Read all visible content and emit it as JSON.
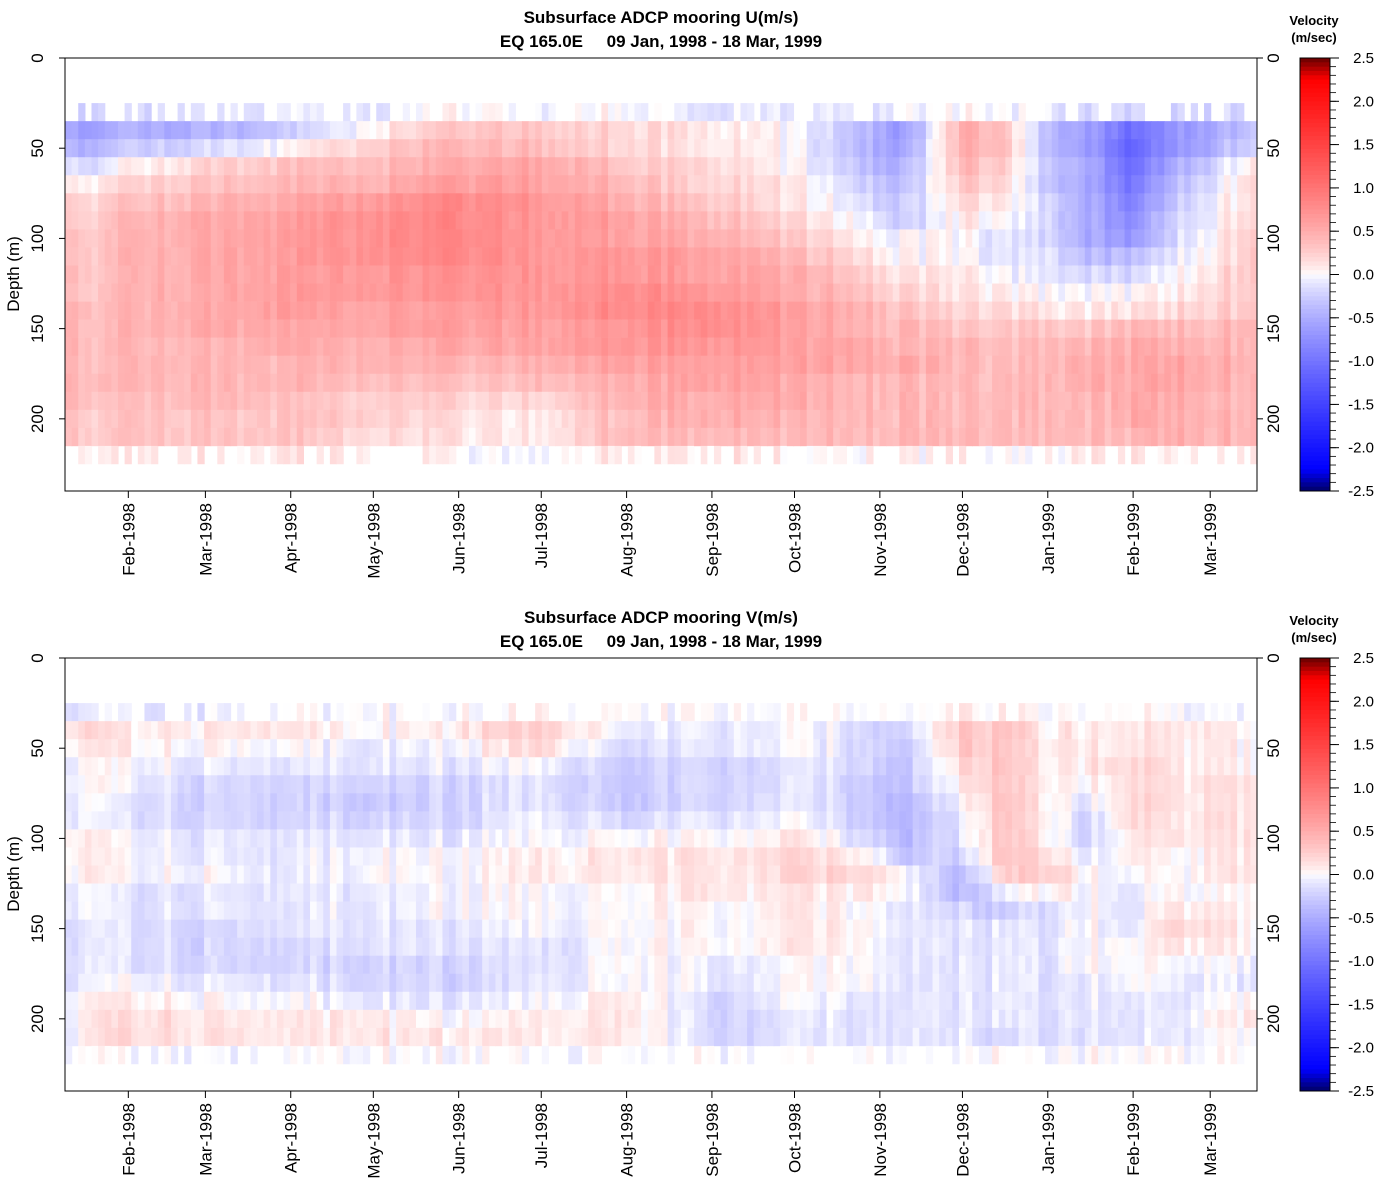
{
  "chart_data": [
    {
      "type": "heatmap",
      "title": "Subsurface ADCP mooring U(m/s)",
      "subtitle": "EQ 165.0E     09 Jan, 1998 - 18 Mar, 1999",
      "xlabel": "",
      "ylabel": "Depth (m)",
      "xlim": [
        "1998-01-09",
        "1999-03-18"
      ],
      "ylim": [
        240,
        0
      ],
      "y_ticks": [
        0,
        50,
        100,
        150,
        200
      ],
      "x_ticks": [
        "Feb-1998",
        "Mar-1998",
        "Apr-1998",
        "May-1998",
        "Jun-1998",
        "Jul-1998",
        "Aug-1998",
        "Sep-1998",
        "Oct-1998",
        "Nov-1998",
        "Dec-1998",
        "Jan-1999",
        "Feb-1999",
        "Mar-1999"
      ],
      "x_tick_dates": [
        "1998-02-01",
        "1998-03-01",
        "1998-04-01",
        "1998-05-01",
        "1998-06-01",
        "1998-07-01",
        "1998-08-01",
        "1998-09-01",
        "1998-10-01",
        "1998-11-01",
        "1998-12-01",
        "1999-01-01",
        "1999-02-01",
        "1999-03-01"
      ],
      "colorbar": {
        "title": [
          "Velocity",
          "(m/sec)"
        ],
        "range": [
          -2.5,
          2.5
        ],
        "ticks": [
          "2.5",
          "2.0",
          "1.5",
          "1.0",
          "0.5",
          "0.0",
          "-0.5",
          "-1.0",
          "-1.5",
          "-2.0",
          "-2.5"
        ],
        "colors": {
          "negative_extreme": "#000066",
          "negative": "#0000ff",
          "zero": "#ffffff",
          "positive": "#ff0000",
          "positive_extreme": "#660000"
        }
      },
      "depths": [
        30,
        40,
        50,
        60,
        70,
        80,
        90,
        100,
        110,
        120,
        130,
        140,
        150,
        160,
        170,
        180,
        190,
        200,
        210,
        220
      ],
      "dates": [
        "1998-01-09",
        "1998-02-01",
        "1998-03-01",
        "1998-04-01",
        "1998-05-01",
        "1998-06-01",
        "1998-07-01",
        "1998-08-01",
        "1998-09-01",
        "1998-10-01",
        "1998-11-01",
        "1998-11-10",
        "1998-12-01",
        "1998-12-15",
        "1999-01-01",
        "1999-01-15",
        "1999-02-01",
        "1999-02-15",
        "1999-03-18"
      ],
      "values": [
        [
          -0.2,
          -0.2,
          -0.2,
          -0.1,
          -0.1,
          0.0,
          0.0,
          0.0,
          -0.1,
          -0.1,
          -0.1,
          -0.1,
          0.0,
          0.0,
          -0.1,
          -0.2,
          -0.2,
          -0.2,
          -0.2
        ],
        [
          -0.6,
          -0.5,
          -0.5,
          -0.3,
          0.1,
          0.3,
          0.3,
          0.2,
          0.1,
          0.0,
          -0.5,
          -0.7,
          0.5,
          0.4,
          -0.4,
          -0.6,
          -1.1,
          -0.7,
          -0.3
        ],
        [
          -0.5,
          -0.3,
          -0.2,
          0.0,
          0.3,
          0.4,
          0.4,
          0.2,
          0.1,
          0.0,
          -0.5,
          -0.6,
          0.5,
          0.4,
          -0.4,
          -0.6,
          -1.2,
          -0.7,
          -0.2
        ],
        [
          -0.2,
          0.0,
          0.2,
          0.3,
          0.4,
          0.5,
          0.6,
          0.3,
          0.2,
          0.0,
          -0.4,
          -0.5,
          0.4,
          0.3,
          -0.3,
          -0.5,
          -1.1,
          -0.5,
          0.1
        ],
        [
          0.0,
          0.2,
          0.3,
          0.4,
          0.5,
          0.6,
          0.6,
          0.4,
          0.2,
          0.1,
          -0.3,
          -0.4,
          0.3,
          0.2,
          -0.3,
          -0.5,
          -1.0,
          -0.4,
          0.2
        ],
        [
          0.2,
          0.3,
          0.4,
          0.5,
          0.7,
          0.8,
          0.7,
          0.5,
          0.3,
          0.1,
          -0.2,
          -0.3,
          0.2,
          0.1,
          -0.2,
          -0.5,
          -0.9,
          -0.3,
          0.2
        ],
        [
          0.2,
          0.4,
          0.5,
          0.6,
          0.8,
          0.8,
          0.7,
          0.6,
          0.4,
          0.2,
          -0.1,
          -0.3,
          0.1,
          0.0,
          -0.2,
          -0.5,
          -0.8,
          -0.2,
          0.2
        ],
        [
          0.3,
          0.4,
          0.5,
          0.6,
          0.8,
          0.8,
          0.7,
          0.6,
          0.5,
          0.3,
          0.0,
          0.0,
          0.0,
          -0.1,
          -0.2,
          -0.5,
          -0.7,
          -0.2,
          0.3
        ],
        [
          0.3,
          0.4,
          0.5,
          0.6,
          0.8,
          0.8,
          0.7,
          0.7,
          0.6,
          0.4,
          0.1,
          0.0,
          0.0,
          -0.1,
          -0.1,
          -0.4,
          -0.4,
          -0.1,
          0.3
        ],
        [
          0.3,
          0.4,
          0.5,
          0.6,
          0.7,
          0.7,
          0.7,
          0.7,
          0.6,
          0.5,
          0.2,
          0.1,
          0.1,
          0.0,
          -0.1,
          -0.2,
          -0.2,
          0.0,
          0.3
        ],
        [
          0.3,
          0.4,
          0.5,
          0.6,
          0.7,
          0.7,
          0.7,
          0.8,
          0.7,
          0.5,
          0.3,
          0.2,
          0.1,
          0.1,
          0.0,
          0.0,
          0.0,
          0.1,
          0.3
        ],
        [
          0.4,
          0.4,
          0.5,
          0.6,
          0.6,
          0.6,
          0.7,
          0.8,
          0.8,
          0.6,
          0.4,
          0.3,
          0.2,
          0.2,
          0.1,
          0.1,
          0.1,
          0.2,
          0.3
        ],
        [
          0.4,
          0.4,
          0.5,
          0.5,
          0.6,
          0.6,
          0.6,
          0.7,
          0.8,
          0.6,
          0.4,
          0.4,
          0.3,
          0.3,
          0.3,
          0.3,
          0.4,
          0.4,
          0.4
        ],
        [
          0.4,
          0.4,
          0.4,
          0.5,
          0.5,
          0.5,
          0.6,
          0.7,
          0.7,
          0.6,
          0.5,
          0.4,
          0.4,
          0.4,
          0.4,
          0.4,
          0.5,
          0.5,
          0.4
        ],
        [
          0.4,
          0.4,
          0.4,
          0.4,
          0.5,
          0.4,
          0.5,
          0.6,
          0.6,
          0.6,
          0.5,
          0.5,
          0.4,
          0.4,
          0.4,
          0.5,
          0.5,
          0.6,
          0.4
        ],
        [
          0.4,
          0.4,
          0.4,
          0.4,
          0.4,
          0.3,
          0.4,
          0.5,
          0.6,
          0.5,
          0.4,
          0.4,
          0.4,
          0.4,
          0.4,
          0.5,
          0.5,
          0.6,
          0.4
        ],
        [
          0.4,
          0.3,
          0.4,
          0.3,
          0.3,
          0.2,
          0.2,
          0.5,
          0.5,
          0.5,
          0.4,
          0.4,
          0.4,
          0.4,
          0.4,
          0.4,
          0.5,
          0.5,
          0.4
        ],
        [
          0.3,
          0.3,
          0.3,
          0.3,
          0.3,
          0.1,
          0.1,
          0.4,
          0.5,
          0.4,
          0.4,
          0.4,
          0.4,
          0.4,
          0.4,
          0.4,
          0.5,
          0.5,
          0.4
        ],
        [
          0.3,
          0.3,
          0.3,
          0.3,
          0.2,
          0.1,
          0.1,
          0.4,
          0.4,
          0.4,
          0.4,
          0.4,
          0.4,
          0.4,
          0.4,
          0.4,
          0.4,
          0.5,
          0.4
        ],
        [
          0.1,
          0.1,
          0.1,
          0.1,
          0.1,
          0.0,
          0.0,
          0.1,
          0.1,
          0.1,
          0.0,
          0.0,
          0.1,
          0.0,
          0.0,
          0.1,
          0.1,
          0.1,
          0.1
        ]
      ]
    },
    {
      "type": "heatmap",
      "title": "Subsurface ADCP mooring V(m/s)",
      "subtitle": "EQ 165.0E     09 Jan, 1998 - 18 Mar, 1999",
      "xlabel": "",
      "ylabel": "Depth (m)",
      "xlim": [
        "1998-01-09",
        "1999-03-18"
      ],
      "ylim": [
        240,
        0
      ],
      "y_ticks": [
        0,
        50,
        100,
        150,
        200
      ],
      "x_ticks": [
        "Feb-1998",
        "Mar-1998",
        "Apr-1998",
        "May-1998",
        "Jun-1998",
        "Jul-1998",
        "Aug-1998",
        "Sep-1998",
        "Oct-1998",
        "Nov-1998",
        "Dec-1998",
        "Jan-1999",
        "Feb-1999",
        "Mar-1999"
      ],
      "x_tick_dates": [
        "1998-02-01",
        "1998-03-01",
        "1998-04-01",
        "1998-05-01",
        "1998-06-01",
        "1998-07-01",
        "1998-08-01",
        "1998-09-01",
        "1998-10-01",
        "1998-11-01",
        "1998-12-01",
        "1999-01-01",
        "1999-02-01",
        "1999-03-01"
      ],
      "colorbar": {
        "title": [
          "Velocity",
          "(m/sec)"
        ],
        "range": [
          -2.5,
          2.5
        ],
        "ticks": [
          "2.5",
          "2.0",
          "1.5",
          "1.0",
          "0.5",
          "0.0",
          "-0.5",
          "-1.0",
          "-1.5",
          "-2.0",
          "-2.5"
        ],
        "colors": {
          "negative_extreme": "#000066",
          "negative": "#0000ff",
          "zero": "#ffffff",
          "positive": "#ff0000",
          "positive_extreme": "#660000"
        }
      },
      "depths": [
        30,
        40,
        50,
        60,
        70,
        80,
        90,
        100,
        110,
        120,
        130,
        140,
        150,
        160,
        170,
        180,
        190,
        200,
        210,
        220
      ],
      "dates": [
        "1998-01-09",
        "1998-02-01",
        "1998-03-01",
        "1998-04-01",
        "1998-05-01",
        "1998-06-01",
        "1998-07-01",
        "1998-08-01",
        "1998-09-01",
        "1998-10-01",
        "1998-11-01",
        "1998-11-10",
        "1998-12-01",
        "1998-12-15",
        "1999-01-01",
        "1999-01-15",
        "1999-02-01",
        "1999-02-15",
        "1999-03-18"
      ],
      "values": [
        [
          -0.1,
          -0.1,
          -0.1,
          0.0,
          0.0,
          0.0,
          0.1,
          0.0,
          0.0,
          0.0,
          0.0,
          0.0,
          0.1,
          0.1,
          0.0,
          0.0,
          0.0,
          0.0,
          -0.1
        ],
        [
          0.2,
          0.1,
          0.1,
          0.1,
          0.0,
          0.1,
          0.3,
          -0.1,
          -0.1,
          0.0,
          -0.2,
          -0.2,
          0.3,
          0.3,
          0.1,
          0.1,
          0.1,
          0.1,
          0.0
        ],
        [
          0.1,
          0.1,
          0.0,
          0.0,
          -0.1,
          0.0,
          0.2,
          -0.2,
          -0.1,
          0.0,
          -0.2,
          -0.3,
          0.3,
          0.3,
          0.1,
          0.1,
          0.1,
          0.1,
          0.0
        ],
        [
          0.0,
          0.0,
          -0.1,
          -0.1,
          -0.1,
          -0.1,
          0.0,
          -0.3,
          -0.2,
          -0.1,
          -0.2,
          -0.3,
          0.2,
          0.3,
          0.1,
          0.1,
          0.2,
          0.1,
          0.0
        ],
        [
          0.0,
          0.0,
          -0.2,
          -0.2,
          -0.2,
          -0.2,
          -0.1,
          -0.3,
          -0.2,
          -0.1,
          -0.3,
          -0.3,
          0.1,
          0.3,
          0.1,
          0.0,
          0.2,
          0.1,
          0.1
        ],
        [
          0.0,
          -0.1,
          -0.2,
          -0.2,
          -0.3,
          -0.2,
          -0.1,
          -0.3,
          -0.2,
          -0.1,
          -0.3,
          -0.4,
          0.0,
          0.3,
          0.1,
          -0.1,
          0.2,
          0.1,
          0.1
        ],
        [
          0.0,
          -0.1,
          -0.2,
          -0.2,
          -0.2,
          -0.2,
          0.0,
          -0.2,
          -0.1,
          0.0,
          -0.3,
          -0.4,
          -0.1,
          0.3,
          0.1,
          -0.2,
          0.2,
          0.1,
          0.1
        ],
        [
          0.1,
          0.0,
          -0.1,
          -0.1,
          -0.1,
          -0.1,
          0.0,
          0.0,
          0.0,
          0.1,
          -0.2,
          -0.4,
          -0.1,
          0.3,
          0.1,
          -0.2,
          0.1,
          0.1,
          0.1
        ],
        [
          0.1,
          0.0,
          -0.1,
          -0.1,
          0.0,
          0.0,
          0.1,
          0.1,
          0.1,
          0.2,
          0.0,
          -0.3,
          -0.2,
          0.3,
          0.2,
          -0.1,
          0.1,
          0.0,
          0.1
        ],
        [
          0.1,
          0.0,
          0.0,
          -0.1,
          0.0,
          0.0,
          0.1,
          0.1,
          0.1,
          0.2,
          0.2,
          0.0,
          -0.4,
          0.2,
          0.3,
          0.0,
          0.0,
          0.0,
          0.1
        ],
        [
          0.0,
          -0.1,
          -0.1,
          -0.1,
          -0.1,
          0.0,
          0.0,
          0.0,
          0.1,
          0.1,
          0.1,
          0.0,
          -0.4,
          -0.1,
          0.1,
          0.0,
          -0.1,
          0.0,
          0.0
        ],
        [
          0.0,
          -0.1,
          -0.1,
          -0.1,
          -0.1,
          0.0,
          0.0,
          0.0,
          0.0,
          0.1,
          0.0,
          -0.1,
          -0.2,
          -0.3,
          -0.1,
          0.0,
          -0.1,
          0.1,
          0.0
        ],
        [
          -0.1,
          -0.1,
          -0.2,
          -0.1,
          -0.1,
          -0.1,
          0.0,
          0.0,
          0.0,
          0.1,
          0.0,
          -0.1,
          -0.1,
          -0.1,
          -0.1,
          0.0,
          -0.1,
          0.2,
          0.0
        ],
        [
          -0.1,
          -0.1,
          -0.2,
          -0.2,
          -0.1,
          -0.1,
          -0.1,
          0.0,
          0.0,
          0.1,
          0.0,
          -0.1,
          -0.1,
          -0.1,
          -0.1,
          0.0,
          0.0,
          0.1,
          0.0
        ],
        [
          -0.1,
          -0.1,
          -0.2,
          -0.2,
          -0.2,
          -0.2,
          -0.1,
          0.0,
          -0.1,
          0.0,
          0.0,
          -0.1,
          -0.1,
          -0.1,
          -0.1,
          0.0,
          0.0,
          0.0,
          -0.1
        ],
        [
          -0.1,
          0.0,
          -0.1,
          -0.1,
          -0.2,
          -0.2,
          -0.1,
          0.0,
          -0.1,
          0.0,
          0.0,
          -0.1,
          -0.1,
          -0.1,
          -0.1,
          -0.1,
          0.0,
          -0.1,
          -0.1
        ],
        [
          0.0,
          0.1,
          0.0,
          0.0,
          -0.1,
          -0.1,
          0.0,
          0.1,
          -0.2,
          0.0,
          -0.1,
          -0.1,
          -0.1,
          -0.1,
          -0.1,
          -0.1,
          -0.1,
          -0.1,
          0.0
        ],
        [
          0.0,
          0.2,
          0.1,
          0.1,
          0.1,
          0.0,
          0.1,
          0.1,
          -0.2,
          -0.1,
          -0.1,
          -0.1,
          -0.1,
          -0.1,
          -0.1,
          -0.1,
          -0.1,
          -0.1,
          0.1
        ],
        [
          0.0,
          0.2,
          0.1,
          0.1,
          0.1,
          0.1,
          0.1,
          0.1,
          -0.2,
          -0.1,
          -0.1,
          -0.1,
          -0.1,
          -0.2,
          -0.1,
          -0.1,
          -0.1,
          -0.1,
          0.0
        ],
        [
          0.0,
          0.0,
          -0.1,
          0.0,
          0.0,
          0.0,
          0.0,
          0.0,
          0.0,
          0.0,
          0.0,
          0.0,
          0.0,
          0.0,
          0.0,
          0.0,
          0.0,
          0.0,
          0.0
        ]
      ]
    }
  ]
}
